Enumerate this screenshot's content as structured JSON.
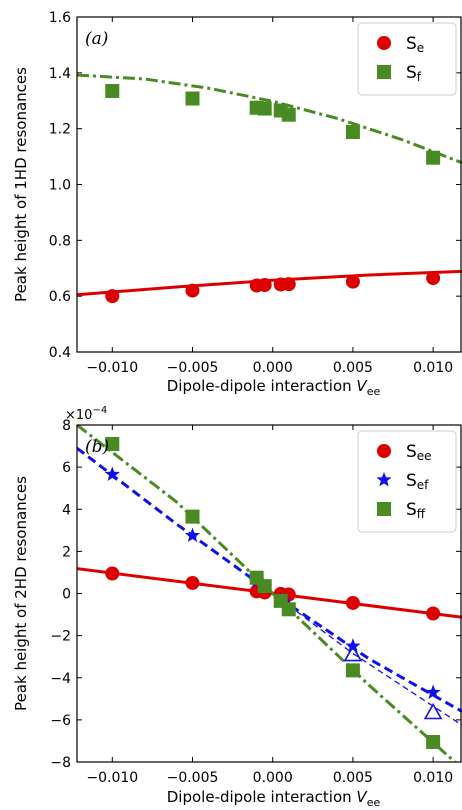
{
  "chart_data": [
    {
      "type": "line",
      "panel_label": "(a)",
      "xlabel": "Dipole-dipole interaction ",
      "xlabel_var": "V",
      "xlabel_sub": "ee",
      "ylabel": "Peak height of 1HD resonances",
      "xlim": [
        -0.0122,
        0.0118
      ],
      "ylim": [
        0.4,
        1.6
      ],
      "xticks": [
        -0.01,
        -0.005,
        0.0,
        0.005,
        0.01
      ],
      "xtick_labels": [
        "−0.010",
        "−0.005",
        "0.000",
        "0.005",
        "0.010"
      ],
      "yticks": [
        0.4,
        0.6,
        0.8,
        1.0,
        1.2,
        1.4,
        1.6
      ],
      "ytick_labels": [
        "0.4",
        "0.6",
        "0.8",
        "1.0",
        "1.2",
        "1.4",
        "1.6"
      ],
      "legend_position": "top-right",
      "series": [
        {
          "name": "S",
          "sub": "e",
          "color": "#dd0000",
          "marker": "circle",
          "line": "solid",
          "points": [
            [
              -0.01,
              0.6
            ],
            [
              -0.005,
              0.62
            ],
            [
              -0.001,
              0.638
            ],
            [
              -0.0005,
              0.64
            ],
            [
              0.0005,
              0.642
            ],
            [
              0.001,
              0.643
            ],
            [
              0.005,
              0.652
            ],
            [
              0.01,
              0.665
            ]
          ],
          "fit": [
            [
              -0.0122,
              0.605
            ],
            [
              -0.006,
              0.633
            ],
            [
              0.0,
              0.657
            ],
            [
              0.006,
              0.676
            ],
            [
              0.0118,
              0.689
            ]
          ]
        },
        {
          "name": "S",
          "sub": "f",
          "color": "#4a8a22",
          "marker": "square",
          "line": "dashdot",
          "points": [
            [
              -0.01,
              1.335
            ],
            [
              -0.005,
              1.308
            ],
            [
              -0.001,
              1.275
            ],
            [
              -0.0005,
              1.272
            ],
            [
              0.0005,
              1.265
            ],
            [
              0.001,
              1.25
            ],
            [
              0.005,
              1.188
            ],
            [
              0.01,
              1.096
            ]
          ],
          "fit": [
            [
              -0.0122,
              1.392
            ],
            [
              -0.008,
              1.378
            ],
            [
              -0.004,
              1.345
            ],
            [
              0.0,
              1.298
            ],
            [
              0.004,
              1.237
            ],
            [
              0.008,
              1.162
            ],
            [
              0.0118,
              1.078
            ]
          ]
        }
      ]
    },
    {
      "type": "line",
      "panel_label": "(b)",
      "multiplier_base": "×10",
      "multiplier_exp": "−4",
      "xlabel": "Dipole-dipole interaction ",
      "xlabel_var": "V",
      "xlabel_sub": "ee",
      "ylabel": "Peak height of 2HD resonances",
      "xlim": [
        -0.0122,
        0.0118
      ],
      "ylim": [
        -8,
        8
      ],
      "xticks": [
        -0.01,
        -0.005,
        0.0,
        0.005,
        0.01
      ],
      "xtick_labels": [
        "−0.010",
        "−0.005",
        "0.000",
        "0.005",
        "0.010"
      ],
      "yticks": [
        -8,
        -6,
        -4,
        -2,
        0,
        2,
        4,
        6,
        8
      ],
      "ytick_labels": [
        "−8",
        "−6",
        "−4",
        "−2",
        "0",
        "2",
        "4",
        "6",
        "8"
      ],
      "legend_position": "top-right",
      "series": [
        {
          "name": "S",
          "sub": "ee",
          "color": "#dd0000",
          "marker": "circle",
          "line": "solid",
          "points": [
            [
              -0.01,
              0.95
            ],
            [
              -0.005,
              0.5
            ],
            [
              -0.001,
              0.1
            ],
            [
              -0.0005,
              0.05
            ],
            [
              0.0005,
              -0.02
            ],
            [
              0.001,
              -0.05
            ],
            [
              0.005,
              -0.45
            ],
            [
              0.01,
              -0.95
            ]
          ],
          "fit": [
            [
              -0.0122,
              1.18
            ],
            [
              0.0118,
              -1.13
            ]
          ]
        },
        {
          "name": "S",
          "sub": "ef",
          "color": "#1010ee",
          "marker": "star",
          "line": "dashed",
          "points": [
            [
              -0.01,
              5.65
            ],
            [
              -0.005,
              2.75
            ],
            [
              -0.001,
              0.6
            ],
            [
              -0.0005,
              0.3
            ],
            [
              0.0005,
              -0.3
            ],
            [
              0.001,
              -0.6
            ],
            [
              0.005,
              -2.5
            ],
            [
              0.01,
              -4.7
            ]
          ],
          "fit": [
            [
              -0.0122,
              6.9
            ],
            [
              -0.006,
              3.3
            ],
            [
              0.0,
              0.0
            ],
            [
              0.006,
              -3.1
            ],
            [
              0.0118,
              -5.6
            ]
          ],
          "extra_points": [
            [
              0.005,
              -2.9
            ],
            [
              0.01,
              -5.65
            ]
          ],
          "extra_fit": [
            [
              0.0,
              0.0
            ],
            [
              0.005,
              -2.85
            ],
            [
              0.0118,
              -6.25
            ]
          ]
        },
        {
          "name": "S",
          "sub": "ff",
          "color": "#4a8a22",
          "marker": "square",
          "line": "dashdot",
          "points": [
            [
              -0.01,
              7.1
            ],
            [
              -0.005,
              3.65
            ],
            [
              -0.001,
              0.75
            ],
            [
              -0.0005,
              0.35
            ],
            [
              0.0005,
              -0.35
            ],
            [
              0.001,
              -0.75
            ],
            [
              0.005,
              -3.65
            ],
            [
              0.01,
              -7.05
            ]
          ],
          "fit": [
            [
              -0.0122,
              8.0
            ],
            [
              -0.006,
              4.35
            ],
            [
              0.0,
              0.0
            ],
            [
              0.006,
              -4.35
            ],
            [
              0.0118,
              -8.3
            ]
          ]
        }
      ]
    }
  ]
}
